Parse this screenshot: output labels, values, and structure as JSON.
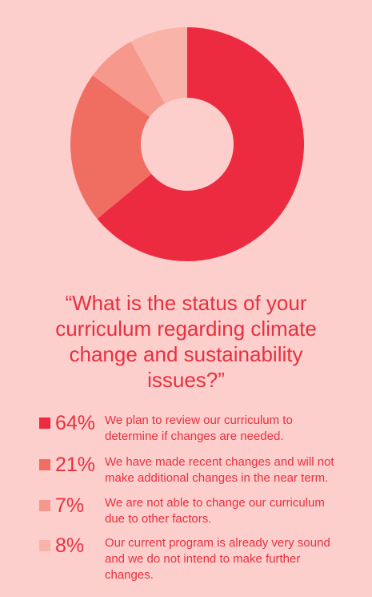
{
  "chart_data": {
    "type": "pie",
    "donut": true,
    "title": "“What is the status of your curriculum regarding climate change and sustainability issues?”",
    "slices": [
      {
        "percent_label": "64%",
        "value": 64,
        "label": "We plan to review our curriculum to determine if changes are needed.",
        "color": "#ec2b40"
      },
      {
        "percent_label": "21%",
        "value": 21,
        "label": "We have made recent changes and will not make additional changes in the near term.",
        "color": "#f06d62"
      },
      {
        "percent_label": "7%",
        "value": 7,
        "label": "We are not able to change our curriculum due to other factors.",
        "color": "#f7988d"
      },
      {
        "percent_label": "8%",
        "value": 8,
        "label": "Our current program is already very sound and we do not intend to make further changes.",
        "color": "#f9b3a8"
      }
    ],
    "background": "#fccfcd",
    "text_color": "#e8303f"
  }
}
